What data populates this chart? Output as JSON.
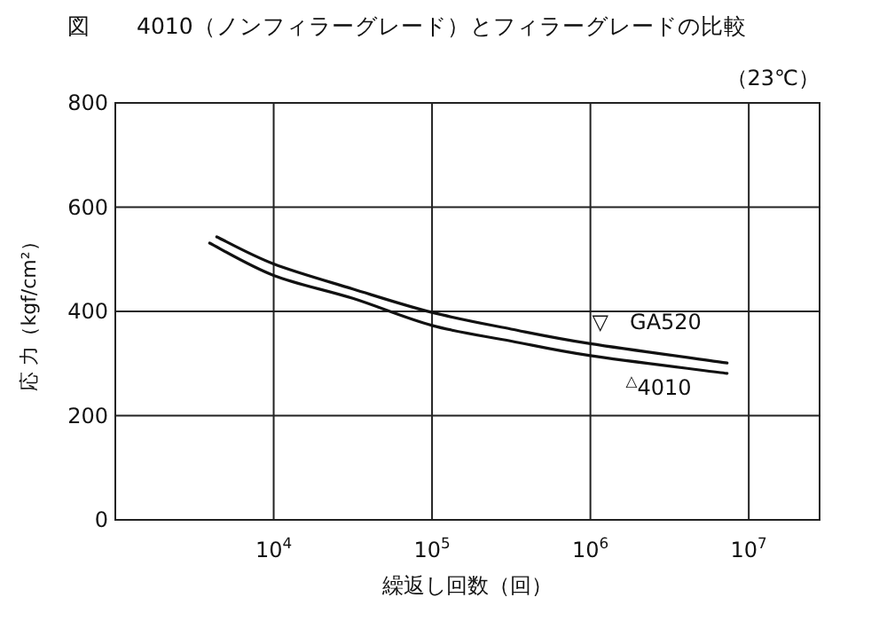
{
  "chart_data": {
    "type": "line",
    "title": "図　　4010（ノンフィラーグレード）とフィラーグレードの比較",
    "subtitle": "（23℃）",
    "xlabel": "繰返し回数（回）",
    "ylabel": "応 力（kgf/cm²）",
    "log": "x",
    "xlim": [
      1000,
      28000000
    ],
    "xticks": [
      {
        "value": 10000,
        "label": "10$^{4}$"
      },
      {
        "value": 100000,
        "label": "10$^{5}$"
      },
      {
        "value": 1000000,
        "label": "10$^{6}$"
      },
      {
        "value": 10000000,
        "label": "10$^{7}$"
      }
    ],
    "ylim": [
      0,
      800
    ],
    "yticks": [
      0,
      200,
      400,
      600,
      800
    ],
    "grid": true,
    "legend": false,
    "marker": "none",
    "line_style": "solid",
    "series": [
      {
        "name": "▽　GA520",
        "color": "#111111",
        "x": [
          4370,
          10000,
          31600,
          100000,
          316000,
          1000000,
          7300000
        ],
        "values": [
          543,
          491,
          443,
          398,
          366,
          338,
          301
        ]
      },
      {
        "name": "$^{△}$4010",
        "color": "#111111",
        "x": [
          3940,
          10000,
          31600,
          100000,
          316000,
          1000000,
          7300000
        ],
        "values": [
          531,
          469,
          425,
          373,
          343,
          315,
          281
        ]
      }
    ]
  }
}
